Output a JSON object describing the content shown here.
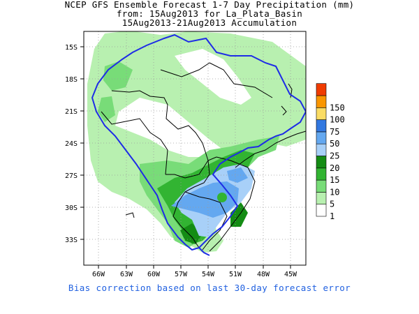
{
  "title": {
    "line1": "NCEP GFS Ensemble Forecast 1-7 Day Precipitation (mm)",
    "line2": "from: 15Aug2013   for La_Plata_Basin",
    "line3": "15Aug2013-21Aug2013 Accumulation"
  },
  "axes": {
    "y_ticks": [
      "15S",
      "18S",
      "21S",
      "24S",
      "27S",
      "30S",
      "33S"
    ],
    "x_ticks": [
      "66W",
      "63W",
      "60W",
      "57W",
      "54W",
      "51W",
      "48W",
      "45W"
    ]
  },
  "legend": {
    "levels": [
      {
        "label": "1",
        "color": "#ffffff"
      },
      {
        "label": "5",
        "color": "#b8f0b0"
      },
      {
        "label": "10",
        "color": "#78dc78"
      },
      {
        "label": "15",
        "color": "#32b432"
      },
      {
        "label": "20",
        "color": "#148c14"
      },
      {
        "label": "25",
        "color": "#a8d0f8"
      },
      {
        "label": "50",
        "color": "#64a8f0"
      },
      {
        "label": "75",
        "color": "#3278e0"
      },
      {
        "label": "100",
        "color": "#fadc64"
      },
      {
        "label": "150",
        "color": "#fa9600"
      },
      {
        "label": "",
        "color": "#f03c00"
      }
    ]
  },
  "colors": {
    "basin_outline": "#1e2ce6",
    "country_borders": "#000000",
    "gridline": "#9a9a9a"
  },
  "footnote": "Bias correction based on last 30-day forecast error"
}
